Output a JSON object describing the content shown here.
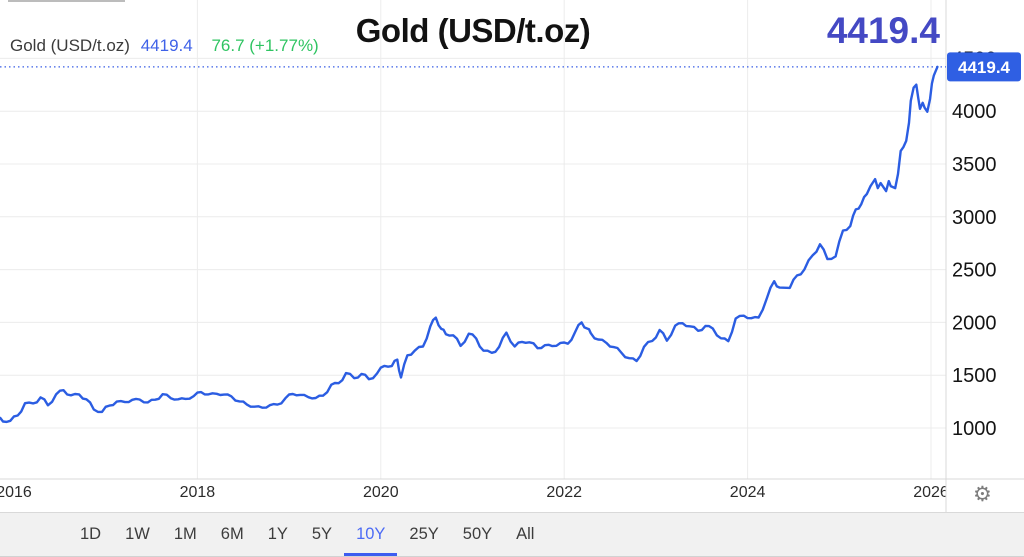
{
  "header": {
    "legend_name": "Gold (USD/t.oz)",
    "legend_value": "4419.4",
    "legend_change": "76.7 (+1.77%)",
    "title": "Gold (USD/t.oz)",
    "big_value": "4419.4"
  },
  "colors": {
    "line": "#2b5de2",
    "dotted_line": "#3a5fe6",
    "badge_bg": "#2f5fe3",
    "badge_text": "#ffffff",
    "big_value": "#4449c4",
    "legend_value": "#3f62e8",
    "legend_change": "#2fc462",
    "selected_range": "#4c6bf5",
    "grid": "#ececec",
    "border": "#d9d9d9",
    "axis_text": "#141414",
    "x_axis_text": "#2b2b2b"
  },
  "badge": {
    "label": "4419.4"
  },
  "toolbar": {
    "ranges": [
      "1D",
      "1W",
      "1M",
      "6M",
      "1Y",
      "5Y",
      "10Y",
      "25Y",
      "50Y",
      "All"
    ],
    "selected": "10Y"
  },
  "settings_icon": "⚙",
  "chart_data": {
    "type": "line",
    "title": "Gold (USD/t.oz)",
    "ylabel": "",
    "xlabel": "",
    "legend_position": "top-left",
    "grid": true,
    "current_value": 4419.4,
    "change": 76.7,
    "change_pct": "+1.77%",
    "ylim": [
      500,
      4600
    ],
    "y_ticks": [
      1000,
      1500,
      2000,
      2500,
      3000,
      3500,
      4000,
      4500
    ],
    "x_ticks": [
      {
        "year": 2016,
        "label": "2016",
        "gridline": false
      },
      {
        "year": 2018,
        "label": "2018",
        "gridline": true
      },
      {
        "year": 2020,
        "label": "2020",
        "gridline": true
      },
      {
        "year": 2022,
        "label": "2022",
        "gridline": true
      },
      {
        "year": 2024,
        "label": "2024",
        "gridline": true
      },
      {
        "year": 2026,
        "label": "2026",
        "gridline": true
      }
    ],
    "series": [
      {
        "name": "Gold (USD/t.oz)",
        "points": [
          [
            2015.82,
            1100
          ],
          [
            2015.88,
            1062
          ],
          [
            2015.96,
            1068
          ],
          [
            2016.04,
            1118
          ],
          [
            2016.12,
            1235
          ],
          [
            2016.21,
            1233
          ],
          [
            2016.29,
            1290
          ],
          [
            2016.37,
            1215
          ],
          [
            2016.46,
            1320
          ],
          [
            2016.54,
            1358
          ],
          [
            2016.62,
            1310
          ],
          [
            2016.71,
            1318
          ],
          [
            2016.79,
            1272
          ],
          [
            2016.87,
            1175
          ],
          [
            2016.96,
            1152
          ],
          [
            2017.04,
            1212
          ],
          [
            2017.12,
            1250
          ],
          [
            2017.21,
            1245
          ],
          [
            2017.29,
            1267
          ],
          [
            2017.37,
            1270
          ],
          [
            2017.46,
            1242
          ],
          [
            2017.54,
            1268
          ],
          [
            2017.62,
            1320
          ],
          [
            2017.71,
            1282
          ],
          [
            2017.79,
            1272
          ],
          [
            2017.87,
            1276
          ],
          [
            2017.96,
            1302
          ],
          [
            2018.04,
            1340
          ],
          [
            2018.12,
            1318
          ],
          [
            2018.21,
            1324
          ],
          [
            2018.29,
            1316
          ],
          [
            2018.37,
            1300
          ],
          [
            2018.46,
            1252
          ],
          [
            2018.54,
            1222
          ],
          [
            2018.62,
            1202
          ],
          [
            2018.71,
            1192
          ],
          [
            2018.79,
            1216
          ],
          [
            2018.87,
            1222
          ],
          [
            2018.96,
            1282
          ],
          [
            2019.04,
            1322
          ],
          [
            2019.12,
            1313
          ],
          [
            2019.21,
            1292
          ],
          [
            2019.29,
            1284
          ],
          [
            2019.37,
            1306
          ],
          [
            2019.46,
            1410
          ],
          [
            2019.54,
            1424
          ],
          [
            2019.62,
            1520
          ],
          [
            2019.71,
            1472
          ],
          [
            2019.79,
            1512
          ],
          [
            2019.87,
            1462
          ],
          [
            2019.96,
            1517
          ],
          [
            2020.04,
            1588
          ],
          [
            2020.12,
            1586
          ],
          [
            2020.18,
            1648
          ],
          [
            2020.22,
            1478
          ],
          [
            2020.29,
            1688
          ],
          [
            2020.37,
            1732
          ],
          [
            2020.46,
            1772
          ],
          [
            2020.54,
            1962
          ],
          [
            2020.6,
            2045
          ],
          [
            2020.66,
            1938
          ],
          [
            2020.71,
            1888
          ],
          [
            2020.79,
            1878
          ],
          [
            2020.87,
            1777
          ],
          [
            2020.96,
            1893
          ],
          [
            2021.04,
            1848
          ],
          [
            2021.12,
            1732
          ],
          [
            2021.21,
            1712
          ],
          [
            2021.29,
            1768
          ],
          [
            2021.37,
            1903
          ],
          [
            2021.46,
            1772
          ],
          [
            2021.54,
            1815
          ],
          [
            2021.62,
            1812
          ],
          [
            2021.71,
            1756
          ],
          [
            2021.79,
            1784
          ],
          [
            2021.87,
            1776
          ],
          [
            2021.96,
            1806
          ],
          [
            2022.04,
            1798
          ],
          [
            2022.12,
            1910
          ],
          [
            2022.19,
            2000
          ],
          [
            2022.25,
            1942
          ],
          [
            2022.29,
            1898
          ],
          [
            2022.37,
            1838
          ],
          [
            2022.46,
            1806
          ],
          [
            2022.54,
            1766
          ],
          [
            2022.62,
            1716
          ],
          [
            2022.71,
            1661
          ],
          [
            2022.79,
            1634
          ],
          [
            2022.87,
            1769
          ],
          [
            2022.96,
            1824
          ],
          [
            2023.04,
            1928
          ],
          [
            2023.12,
            1827
          ],
          [
            2023.21,
            1970
          ],
          [
            2023.29,
            1992
          ],
          [
            2023.37,
            1963
          ],
          [
            2023.46,
            1920
          ],
          [
            2023.54,
            1966
          ],
          [
            2023.62,
            1942
          ],
          [
            2023.71,
            1849
          ],
          [
            2023.79,
            1822
          ],
          [
            2023.87,
            2037
          ],
          [
            2023.96,
            2063
          ],
          [
            2024.04,
            2040
          ],
          [
            2024.12,
            2046
          ],
          [
            2024.21,
            2230
          ],
          [
            2024.29,
            2390
          ],
          [
            2024.35,
            2330
          ],
          [
            2024.46,
            2327
          ],
          [
            2024.54,
            2445
          ],
          [
            2024.62,
            2503
          ],
          [
            2024.71,
            2635
          ],
          [
            2024.79,
            2740
          ],
          [
            2024.87,
            2600
          ],
          [
            2024.96,
            2625
          ],
          [
            2025.04,
            2870
          ],
          [
            2025.12,
            2912
          ],
          [
            2025.18,
            3070
          ],
          [
            2025.24,
            3120
          ],
          [
            2025.3,
            3215
          ],
          [
            2025.34,
            3291
          ],
          [
            2025.39,
            3357
          ],
          [
            2025.42,
            3272
          ],
          [
            2025.45,
            3319
          ],
          [
            2025.51,
            3243
          ],
          [
            2025.54,
            3338
          ],
          [
            2025.56,
            3291
          ],
          [
            2025.61,
            3272
          ],
          [
            2025.64,
            3405
          ],
          [
            2025.67,
            3624
          ],
          [
            2025.7,
            3662
          ],
          [
            2025.73,
            3719
          ],
          [
            2025.76,
            3890
          ],
          [
            2025.78,
            4099
          ],
          [
            2025.81,
            4223
          ],
          [
            2025.84,
            4251
          ],
          [
            2025.86,
            4128
          ],
          [
            2025.88,
            4023
          ],
          [
            2025.91,
            4080
          ],
          [
            2025.93,
            4033
          ],
          [
            2025.96,
            3995
          ],
          [
            2025.99,
            4118
          ],
          [
            2026.01,
            4261
          ],
          [
            2026.03,
            4337
          ],
          [
            2026.07,
            4419.4
          ]
        ]
      }
    ]
  }
}
